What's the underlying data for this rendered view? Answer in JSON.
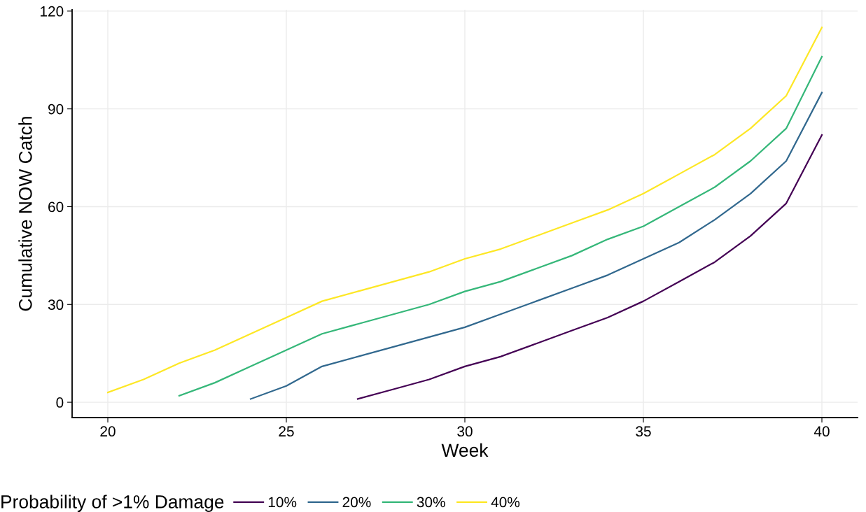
{
  "chart_data": {
    "type": "line",
    "xlabel": "Week",
    "ylabel": "Cumulative NOW Catch",
    "legend_title": "Probability of >1% Damage",
    "xlim": [
      19,
      41
    ],
    "xticks": [
      20,
      25,
      30,
      35,
      40
    ],
    "ylim": [
      -4.7,
      120.4
    ],
    "yticks": [
      0,
      30,
      60,
      90,
      120
    ],
    "grid": true,
    "legend": "bottom",
    "series": [
      {
        "name": "10%",
        "color": "#440154",
        "x": [
          27,
          28,
          29,
          30,
          31,
          32,
          33,
          34,
          35,
          36,
          37,
          38,
          39,
          40
        ],
        "values": [
          1,
          4,
          7,
          11,
          14,
          18,
          22,
          26,
          31,
          37,
          43,
          51,
          61,
          82
        ]
      },
      {
        "name": "20%",
        "color": "#31688e",
        "x": [
          24,
          25,
          26,
          27,
          28,
          29,
          30,
          31,
          32,
          33,
          34,
          35,
          36,
          37,
          38,
          39,
          40
        ],
        "values": [
          1,
          5,
          11,
          14,
          17,
          20,
          23,
          27,
          31,
          35,
          39,
          44,
          49,
          56,
          64,
          74,
          95
        ]
      },
      {
        "name": "30%",
        "color": "#35b779",
        "x": [
          22,
          23,
          24,
          25,
          26,
          27,
          28,
          29,
          30,
          31,
          32,
          33,
          34,
          35,
          36,
          37,
          38,
          39,
          40
        ],
        "values": [
          2,
          6,
          11,
          16,
          21,
          24,
          27,
          30,
          34,
          37,
          41,
          45,
          50,
          54,
          60,
          66,
          74,
          84,
          106
        ]
      },
      {
        "name": "40%",
        "color": "#fde725",
        "x": [
          20,
          21,
          22,
          23,
          24,
          25,
          26,
          27,
          28,
          29,
          30,
          31,
          32,
          33,
          34,
          35,
          36,
          37,
          38,
          39,
          40
        ],
        "values": [
          3,
          7,
          12,
          16,
          21,
          26,
          31,
          34,
          37,
          40,
          44,
          47,
          51,
          55,
          59,
          64,
          70,
          76,
          84,
          94,
          115
        ]
      }
    ]
  }
}
